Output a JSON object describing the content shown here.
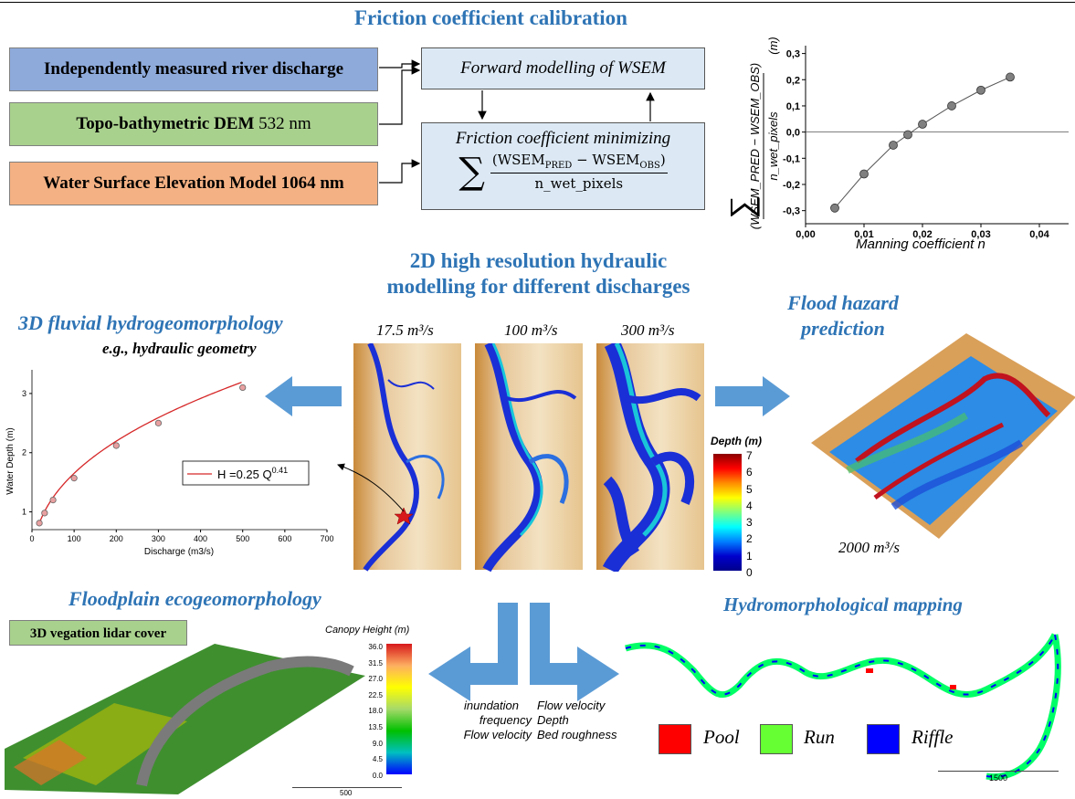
{
  "top_rule_color": "#000000",
  "calibration": {
    "title": "Friction coefficient calibration",
    "inputs": [
      {
        "label_bold": "Independently measured river discharge",
        "label_plain": "",
        "color": "#8eaadb"
      },
      {
        "label_bold": "Topo-bathymetric DEM",
        "label_plain": " 532 nm",
        "color": "#a9d18e"
      },
      {
        "label_bold": "Water Surface Elevation Model 1064 nm",
        "label_plain": "",
        "color": "#f4b183"
      }
    ],
    "forward_box": "Forward modelling of WSEM",
    "friction_box_line1": "Friction coefficient minimizing",
    "friction_formula_sum": "∑",
    "friction_formula_num": "(WSEM",
    "friction_formula_pred": "PRED",
    "friction_formula_mid": " − WSEM",
    "friction_formula_obs": "OBS",
    "friction_formula_close": ")",
    "friction_formula_den": "n_wet_pixels"
  },
  "manning_chart": {
    "chart_data": {
      "type": "scatter",
      "title": "",
      "xlabel": "Manning coefficient n",
      "ylabel_num": "(WSEM_PRED − WSEM_OBS)",
      "ylabel_den": "n_wet_pixels",
      "ylabel_unit": "(m)",
      "xlim": [
        0,
        0.045
      ],
      "ylim": [
        -0.35,
        0.33
      ],
      "x_ticks": [
        "0,00",
        "0,01",
        "0,02",
        "0,03",
        "0,04"
      ],
      "y_ticks": [
        "-0,3",
        "-0,2",
        "-0,1",
        "0,0",
        "0,1",
        "0,2",
        "0,3"
      ],
      "x": [
        0.005,
        0.01,
        0.015,
        0.0175,
        0.02,
        0.025,
        0.03,
        0.035
      ],
      "y": [
        -0.29,
        -0.16,
        -0.05,
        -0.01,
        0.03,
        0.1,
        0.16,
        0.21
      ],
      "marker_color": "#808080"
    }
  },
  "hydraulic": {
    "title_line1": "2D high resolution hydraulic",
    "title_line2": "modelling for different discharges",
    "panels": [
      {
        "label": "17.5 m³/s"
      },
      {
        "label": "100 m³/s"
      },
      {
        "label": "300 m³/s"
      }
    ],
    "colorbar_title": "Depth (m)",
    "colorbar_ticks": [
      "7",
      "6",
      "5",
      "4",
      "3",
      "2",
      "1",
      "0"
    ]
  },
  "fluvial": {
    "title": "3D fluvial hydrogeomorphology",
    "subtitle": "e.g., hydraulic geometry",
    "chart_data": {
      "type": "line",
      "xlabel": "Discharge (m3/s)",
      "ylabel": "Water Depth (m)",
      "xlim": [
        0,
        700
      ],
      "ylim": [
        0.7,
        3.4
      ],
      "x_ticks": [
        "0",
        "100",
        "200",
        "300",
        "400",
        "500",
        "600",
        "700"
      ],
      "y_ticks": [
        "1",
        "2",
        "3"
      ],
      "x": [
        17.5,
        30,
        50,
        100,
        200,
        300,
        500
      ],
      "y": [
        0.81,
        0.98,
        1.2,
        1.57,
        2.12,
        2.5,
        3.1
      ],
      "legend": "H =0.25 Q",
      "legend_exp": "0.41",
      "line_color": "#d62728"
    }
  },
  "flood": {
    "title_line1": "Flood hazard",
    "title_line2": "prediction",
    "discharge": "2000 m³/s"
  },
  "floodplain": {
    "title": "Floodplain ecogeomorphology",
    "badge": "3D vegation lidar cover",
    "badge_color": "#a9d18e",
    "canopy_title": "Canopy Height (m)",
    "canopy_ticks": [
      "36.0",
      "31.5",
      "27.0",
      "22.5",
      "18.0",
      "13.5",
      "9.0",
      "4.5",
      "0.0"
    ],
    "scale_label": "500"
  },
  "arrows_text": {
    "left": [
      "inundation",
      "frequency",
      "Flow velocity"
    ],
    "right": [
      "Flow velocity",
      "Depth",
      "Bed roughness"
    ]
  },
  "hydromorph": {
    "title": "Hydromorphological mapping",
    "legend": [
      {
        "label": "Pool",
        "color": "#ff0000"
      },
      {
        "label": "Run",
        "color": "#66ff33"
      },
      {
        "label": "Riffle",
        "color": "#0000ff"
      }
    ],
    "scale_label": "1500"
  }
}
